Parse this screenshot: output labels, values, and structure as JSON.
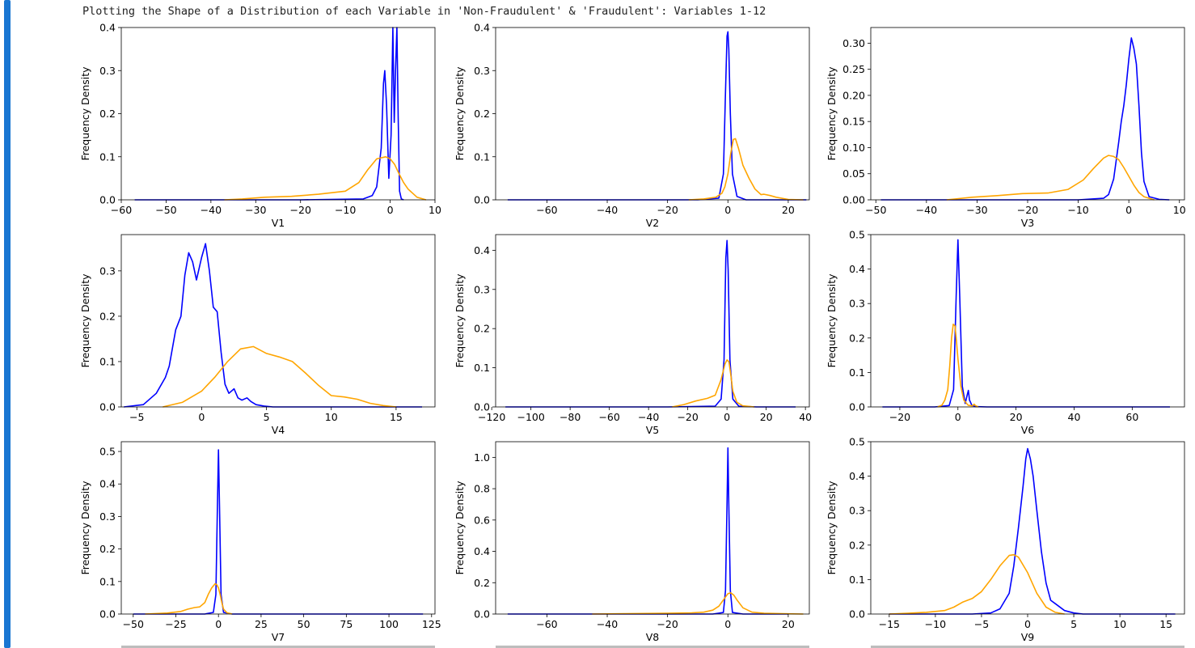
{
  "output": {
    "title": "Plotting the Shape of a Distribution of each Variable in 'Non-Fraudulent' & 'Fraudulent': Variables 1-12"
  },
  "colors": {
    "non_fraudulent": "#0000ff",
    "fraudulent": "#ffa500",
    "cell_indicator": "#1976d2"
  },
  "chart_data": [
    {
      "type": "line",
      "title": "",
      "xlabel": "V1",
      "ylabel": "Frequency Density",
      "xlim": [
        -60,
        10
      ],
      "ylim": [
        0,
        0.4
      ],
      "xticks": [
        -60,
        -50,
        -40,
        -30,
        -20,
        -10,
        0,
        10
      ],
      "yticks": [
        0.0,
        0.1,
        0.2,
        0.3,
        0.4
      ],
      "series": [
        {
          "color": "#0000ff",
          "x": [
            -57,
            -20,
            -6,
            -4,
            -3,
            -2,
            -1.5,
            -1.2,
            -0.8,
            -0.3,
            0.2,
            0.6,
            0.9,
            1.2,
            1.5,
            1.8,
            2.1,
            2.5,
            3
          ],
          "y": [
            0,
            0,
            0.002,
            0.01,
            0.03,
            0.12,
            0.27,
            0.3,
            0.22,
            0.05,
            0.15,
            0.4,
            0.18,
            0.3,
            0.4,
            0.19,
            0.02,
            0.002,
            0
          ]
        },
        {
          "color": "#ffa500",
          "x": [
            -37,
            -33,
            -28,
            -22,
            -16,
            -10,
            -7,
            -5,
            -3,
            -1,
            0,
            1,
            2,
            3,
            4,
            6,
            8
          ],
          "y": [
            0,
            0.002,
            0.006,
            0.008,
            0.013,
            0.02,
            0.04,
            0.07,
            0.095,
            0.1,
            0.095,
            0.082,
            0.06,
            0.04,
            0.025,
            0.006,
            0
          ]
        }
      ]
    },
    {
      "type": "line",
      "title": "",
      "xlabel": "V2",
      "ylabel": "Frequency Density",
      "xlim": [
        -77,
        27
      ],
      "ylim": [
        0,
        0.4
      ],
      "xticks": [
        -60,
        -40,
        -20,
        0,
        20
      ],
      "yticks": [
        0.0,
        0.1,
        0.2,
        0.3,
        0.4
      ],
      "series": [
        {
          "color": "#0000ff",
          "x": [
            -73,
            -10,
            -3,
            -1.5,
            -0.8,
            -0.3,
            0,
            0.3,
            0.8,
            1.5,
            3,
            6,
            26
          ],
          "y": [
            0,
            0,
            0.004,
            0.06,
            0.25,
            0.38,
            0.39,
            0.35,
            0.2,
            0.06,
            0.008,
            0,
            0
          ]
        },
        {
          "color": "#ffa500",
          "x": [
            -13,
            -8,
            -4,
            -2,
            -1,
            0,
            1,
            1.8,
            2.5,
            3.5,
            5,
            7,
            9,
            11,
            12,
            14,
            16,
            20,
            25
          ],
          "y": [
            0,
            0.002,
            0.006,
            0.015,
            0.03,
            0.06,
            0.11,
            0.14,
            0.142,
            0.12,
            0.08,
            0.05,
            0.025,
            0.012,
            0.013,
            0.01,
            0.006,
            0.001,
            0
          ]
        }
      ]
    },
    {
      "type": "line",
      "title": "",
      "xlabel": "V3",
      "ylabel": "Frequency Density",
      "xlim": [
        -51,
        11
      ],
      "ylim": [
        0,
        0.33
      ],
      "xticks": [
        -50,
        -40,
        -30,
        -20,
        -10,
        0,
        10
      ],
      "yticks": [
        0.0,
        0.05,
        0.1,
        0.15,
        0.2,
        0.25,
        0.3
      ],
      "series": [
        {
          "color": "#0000ff",
          "x": [
            -49,
            -10,
            -5,
            -4,
            -3,
            -2,
            -1.5,
            -1,
            -0.5,
            0,
            0.5,
            1,
            1.5,
            2,
            2.5,
            3,
            4,
            6,
            8
          ],
          "y": [
            0,
            0,
            0.003,
            0.01,
            0.04,
            0.11,
            0.15,
            0.18,
            0.22,
            0.27,
            0.31,
            0.29,
            0.26,
            0.18,
            0.09,
            0.035,
            0.006,
            0.001,
            0
          ]
        },
        {
          "color": "#ffa500",
          "x": [
            -36,
            -31,
            -26,
            -21,
            -16,
            -12,
            -9,
            -7,
            -5,
            -4,
            -3,
            -2,
            -1,
            0,
            1,
            2,
            3,
            5
          ],
          "y": [
            0,
            0.005,
            0.008,
            0.012,
            0.013,
            0.02,
            0.038,
            0.06,
            0.08,
            0.085,
            0.083,
            0.077,
            0.062,
            0.045,
            0.028,
            0.014,
            0.006,
            0
          ]
        }
      ]
    },
    {
      "type": "line",
      "title": "",
      "xlabel": "V4",
      "ylabel": "Frequency Density",
      "xlim": [
        -6.2,
        18
      ],
      "ylim": [
        0,
        0.38
      ],
      "xticks": [
        -5,
        0,
        5,
        10,
        15
      ],
      "yticks": [
        0.0,
        0.1,
        0.2,
        0.3
      ],
      "series": [
        {
          "color": "#0000ff",
          "x": [
            -6,
            -4.5,
            -3.5,
            -2.8,
            -2.5,
            -2,
            -1.6,
            -1.3,
            -1,
            -0.7,
            -0.4,
            0,
            0.3,
            0.6,
            0.9,
            1.2,
            1.5,
            1.8,
            2.1,
            2.5,
            2.8,
            3.1,
            3.5,
            3.8,
            4.2,
            4.8,
            5.5,
            7,
            17
          ],
          "y": [
            0,
            0.005,
            0.03,
            0.065,
            0.09,
            0.17,
            0.2,
            0.29,
            0.34,
            0.32,
            0.28,
            0.33,
            0.36,
            0.3,
            0.22,
            0.21,
            0.12,
            0.05,
            0.03,
            0.04,
            0.02,
            0.015,
            0.02,
            0.012,
            0.005,
            0.002,
            0,
            0,
            0
          ]
        },
        {
          "color": "#ffa500",
          "x": [
            -3,
            -1.5,
            0,
            1,
            2,
            3,
            4,
            5,
            6,
            7,
            8,
            9,
            10,
            11,
            12,
            13,
            14,
            15
          ],
          "y": [
            0,
            0.01,
            0.035,
            0.065,
            0.1,
            0.128,
            0.133,
            0.118,
            0.11,
            0.1,
            0.075,
            0.048,
            0.025,
            0.022,
            0.017,
            0.008,
            0.003,
            0
          ]
        }
      ]
    },
    {
      "type": "line",
      "title": "",
      "xlabel": "V5",
      "ylabel": "Frequency Density",
      "xlim": [
        -118,
        42
      ],
      "ylim": [
        0,
        0.44
      ],
      "xticks": [
        -120,
        -100,
        -80,
        -60,
        -40,
        -20,
        0,
        20,
        40
      ],
      "yticks": [
        0.0,
        0.1,
        0.2,
        0.3,
        0.4
      ],
      "series": [
        {
          "color": "#0000ff",
          "x": [
            -113,
            -30,
            -6,
            -3,
            -1.5,
            -0.6,
            0,
            0.6,
            1.5,
            3,
            6,
            15,
            35
          ],
          "y": [
            0,
            0,
            0.002,
            0.02,
            0.12,
            0.38,
            0.425,
            0.35,
            0.12,
            0.02,
            0.002,
            0,
            0
          ]
        },
        {
          "color": "#ffa500",
          "x": [
            -28,
            -22,
            -16,
            -10,
            -6,
            -3,
            -1,
            0,
            1,
            2,
            3,
            5,
            8,
            14
          ],
          "y": [
            0,
            0.006,
            0.015,
            0.022,
            0.03,
            0.07,
            0.11,
            0.12,
            0.115,
            0.08,
            0.04,
            0.012,
            0.003,
            0
          ]
        }
      ]
    },
    {
      "type": "line",
      "title": "",
      "xlabel": "V6",
      "ylabel": "Frequency Density",
      "xlim": [
        -30,
        78
      ],
      "ylim": [
        0,
        0.5
      ],
      "xticks": [
        -20,
        0,
        20,
        40,
        60
      ],
      "yticks": [
        0.0,
        0.1,
        0.2,
        0.3,
        0.4,
        0.5
      ],
      "series": [
        {
          "color": "#0000ff",
          "x": [
            -26,
            -8,
            -3,
            -1.5,
            -0.6,
            0,
            0.6,
            1.5,
            2.5,
            3.2,
            3.6,
            4,
            4.8,
            6,
            10,
            73
          ],
          "y": [
            0,
            0,
            0.004,
            0.05,
            0.32,
            0.485,
            0.33,
            0.06,
            0.01,
            0.035,
            0.048,
            0.02,
            0.005,
            0.001,
            0,
            0
          ]
        },
        {
          "color": "#ffa500",
          "x": [
            -7,
            -5.5,
            -4.5,
            -3.5,
            -2.8,
            -2.2,
            -1.6,
            -1,
            -0.5,
            0,
            0.5,
            1,
            2,
            3.5,
            5,
            5.6,
            6,
            7
          ],
          "y": [
            0,
            0.005,
            0.02,
            0.05,
            0.12,
            0.2,
            0.24,
            0.235,
            0.19,
            0.14,
            0.1,
            0.06,
            0.02,
            0.005,
            0.003,
            0.008,
            0.004,
            0
          ]
        }
      ]
    },
    {
      "type": "line",
      "title": "",
      "xlabel": "V7",
      "ylabel": "Frequency Density",
      "xlim": [
        -57,
        127
      ],
      "ylim": [
        0,
        0.53
      ],
      "xticks": [
        -50,
        -25,
        0,
        25,
        50,
        75,
        100,
        125
      ],
      "yticks": [
        0.0,
        0.1,
        0.2,
        0.3,
        0.4,
        0.5
      ],
      "series": [
        {
          "color": "#0000ff",
          "x": [
            -50,
            -8,
            -3,
            -1.5,
            -0.6,
            0,
            0.6,
            1.5,
            3,
            8,
            120
          ],
          "y": [
            0,
            0,
            0.005,
            0.06,
            0.33,
            0.505,
            0.33,
            0.06,
            0.005,
            0,
            0
          ]
        },
        {
          "color": "#ffa500",
          "x": [
            -43,
            -30,
            -22,
            -18,
            -14,
            -11,
            -8,
            -6,
            -4,
            -2,
            -1,
            0,
            1,
            2,
            3,
            5,
            8
          ],
          "y": [
            0,
            0.003,
            0.008,
            0.015,
            0.02,
            0.022,
            0.035,
            0.06,
            0.08,
            0.093,
            0.09,
            0.08,
            0.06,
            0.035,
            0.015,
            0.004,
            0
          ]
        }
      ]
    },
    {
      "type": "line",
      "title": "",
      "xlabel": "V8",
      "ylabel": "Frequency Density",
      "xlim": [
        -77,
        27
      ],
      "ylim": [
        0,
        1.1
      ],
      "xticks": [
        -60,
        -40,
        -20,
        0,
        20
      ],
      "yticks": [
        0.0,
        0.2,
        0.4,
        0.6,
        0.8,
        1.0
      ],
      "series": [
        {
          "color": "#0000ff",
          "x": [
            -73,
            -5,
            -1.5,
            -0.8,
            -0.3,
            0,
            0.3,
            0.8,
            1.5,
            5,
            20
          ],
          "y": [
            0,
            0,
            0.01,
            0.15,
            0.7,
            1.06,
            0.7,
            0.15,
            0.01,
            0,
            0
          ]
        },
        {
          "color": "#ffa500",
          "x": [
            -45,
            -30,
            -20,
            -12,
            -8,
            -5,
            -3,
            -1.5,
            0,
            1,
            2,
            3,
            5,
            8,
            12,
            18,
            25
          ],
          "y": [
            0,
            0.003,
            0.005,
            0.008,
            0.012,
            0.025,
            0.05,
            0.09,
            0.13,
            0.135,
            0.12,
            0.09,
            0.04,
            0.012,
            0.005,
            0.002,
            0
          ]
        }
      ]
    },
    {
      "type": "line",
      "title": "",
      "xlabel": "V9",
      "ylabel": "Frequency Density",
      "xlim": [
        -17,
        17
      ],
      "ylim": [
        0,
        0.5
      ],
      "xticks": [
        -15,
        -10,
        -5,
        0,
        5,
        10,
        15
      ],
      "yticks": [
        0.0,
        0.1,
        0.2,
        0.3,
        0.4,
        0.5
      ],
      "series": [
        {
          "color": "#0000ff",
          "x": [
            -15,
            -6,
            -4,
            -3,
            -2,
            -1.5,
            -1,
            -0.5,
            -0.2,
            0,
            0.3,
            0.6,
            1,
            1.5,
            2,
            2.5,
            3,
            4,
            5,
            6,
            16
          ],
          "y": [
            0,
            0,
            0.003,
            0.015,
            0.06,
            0.14,
            0.25,
            0.37,
            0.45,
            0.48,
            0.45,
            0.4,
            0.3,
            0.18,
            0.09,
            0.04,
            0.03,
            0.01,
            0.003,
            0,
            0
          ]
        },
        {
          "color": "#ffa500",
          "x": [
            -15,
            -13,
            -11,
            -9,
            -8,
            -7,
            -6,
            -5,
            -4,
            -3,
            -2,
            -1.5,
            -1,
            0,
            0.5,
            1,
            2,
            3,
            4
          ],
          "y": [
            0,
            0.002,
            0.005,
            0.01,
            0.02,
            0.035,
            0.045,
            0.065,
            0.1,
            0.14,
            0.17,
            0.172,
            0.165,
            0.12,
            0.09,
            0.06,
            0.02,
            0.005,
            0
          ]
        }
      ]
    }
  ]
}
